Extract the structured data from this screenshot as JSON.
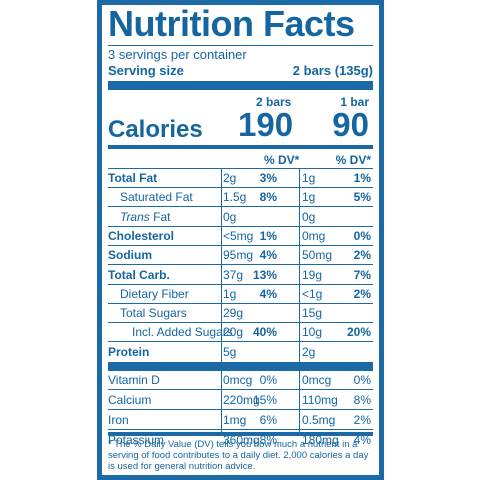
{
  "title": "Nutrition Facts",
  "servings_per_container": "3 servings per container",
  "serving_size_label": "Serving size",
  "serving_size_value": "2 bars (135g)",
  "col1_header": "2 bars",
  "col2_header": "1 bar",
  "calories_label": "Calories",
  "calories_col1": "190",
  "calories_col2": "90",
  "dv_header": "% DV*",
  "nutrients": [
    {
      "label": "Total Fat",
      "bold": true,
      "indent": 0,
      "a1": "2g",
      "d1": "3%",
      "a2": "1g",
      "d2": "1%"
    },
    {
      "label": "Saturated Fat",
      "bold": false,
      "indent": 1,
      "a1": "1.5g",
      "d1": "8%",
      "a2": "1g",
      "d2": "5%"
    },
    {
      "label": "Trans Fat",
      "bold": false,
      "indent": 1,
      "italic_prefix": "Trans",
      "a1": "0g",
      "d1": "",
      "a2": "0g",
      "d2": ""
    },
    {
      "label": "Cholesterol",
      "bold": true,
      "indent": 0,
      "a1": "<5mg",
      "d1": "1%",
      "a2": "0mg",
      "d2": "0%"
    },
    {
      "label": "Sodium",
      "bold": true,
      "indent": 0,
      "a1": "95mg",
      "d1": "4%",
      "a2": "50mg",
      "d2": "2%"
    },
    {
      "label": "Total Carb.",
      "bold": true,
      "indent": 0,
      "a1": "37g",
      "d1": "13%",
      "a2": "19g",
      "d2": "7%"
    },
    {
      "label": "Dietary Fiber",
      "bold": false,
      "indent": 1,
      "a1": "1g",
      "d1": "4%",
      "a2": "<1g",
      "d2": "2%"
    },
    {
      "label": "Total Sugars",
      "bold": false,
      "indent": 1,
      "a1": "29g",
      "d1": "",
      "a2": "15g",
      "d2": ""
    },
    {
      "label": "Incl. Added Sugars",
      "bold": false,
      "indent": 2,
      "a1": "20g",
      "d1": "40%",
      "a2": "10g",
      "d2": "20%"
    },
    {
      "label": "Protein",
      "bold": true,
      "indent": 0,
      "a1": "5g",
      "d1": "",
      "a2": "2g",
      "d2": ""
    }
  ],
  "vitamins": [
    {
      "label": "Vitamin D",
      "a1": "0mcg",
      "d1": "0%",
      "a2": "0mcg",
      "d2": "0%"
    },
    {
      "label": "Calcium",
      "a1": "220mg",
      "d1": "15%",
      "a2": "110mg",
      "d2": "8%"
    },
    {
      "label": "Iron",
      "a1": "1mg",
      "d1": "6%",
      "a2": "0.5mg",
      "d2": "2%"
    },
    {
      "label": "Potassium",
      "a1": "360mg",
      "d1": "8%",
      "a2": "180mg",
      "d2": "4%"
    }
  ],
  "footnote": "* The % Daily Value (DV) tells you how much a nutrient in a serving of food contributes to a daily diet. 2,000 calories a day is used for general nutrition advice.",
  "colors": {
    "brand": "#1b6aa5",
    "text": "#1565a0",
    "background": "#ffffff"
  }
}
